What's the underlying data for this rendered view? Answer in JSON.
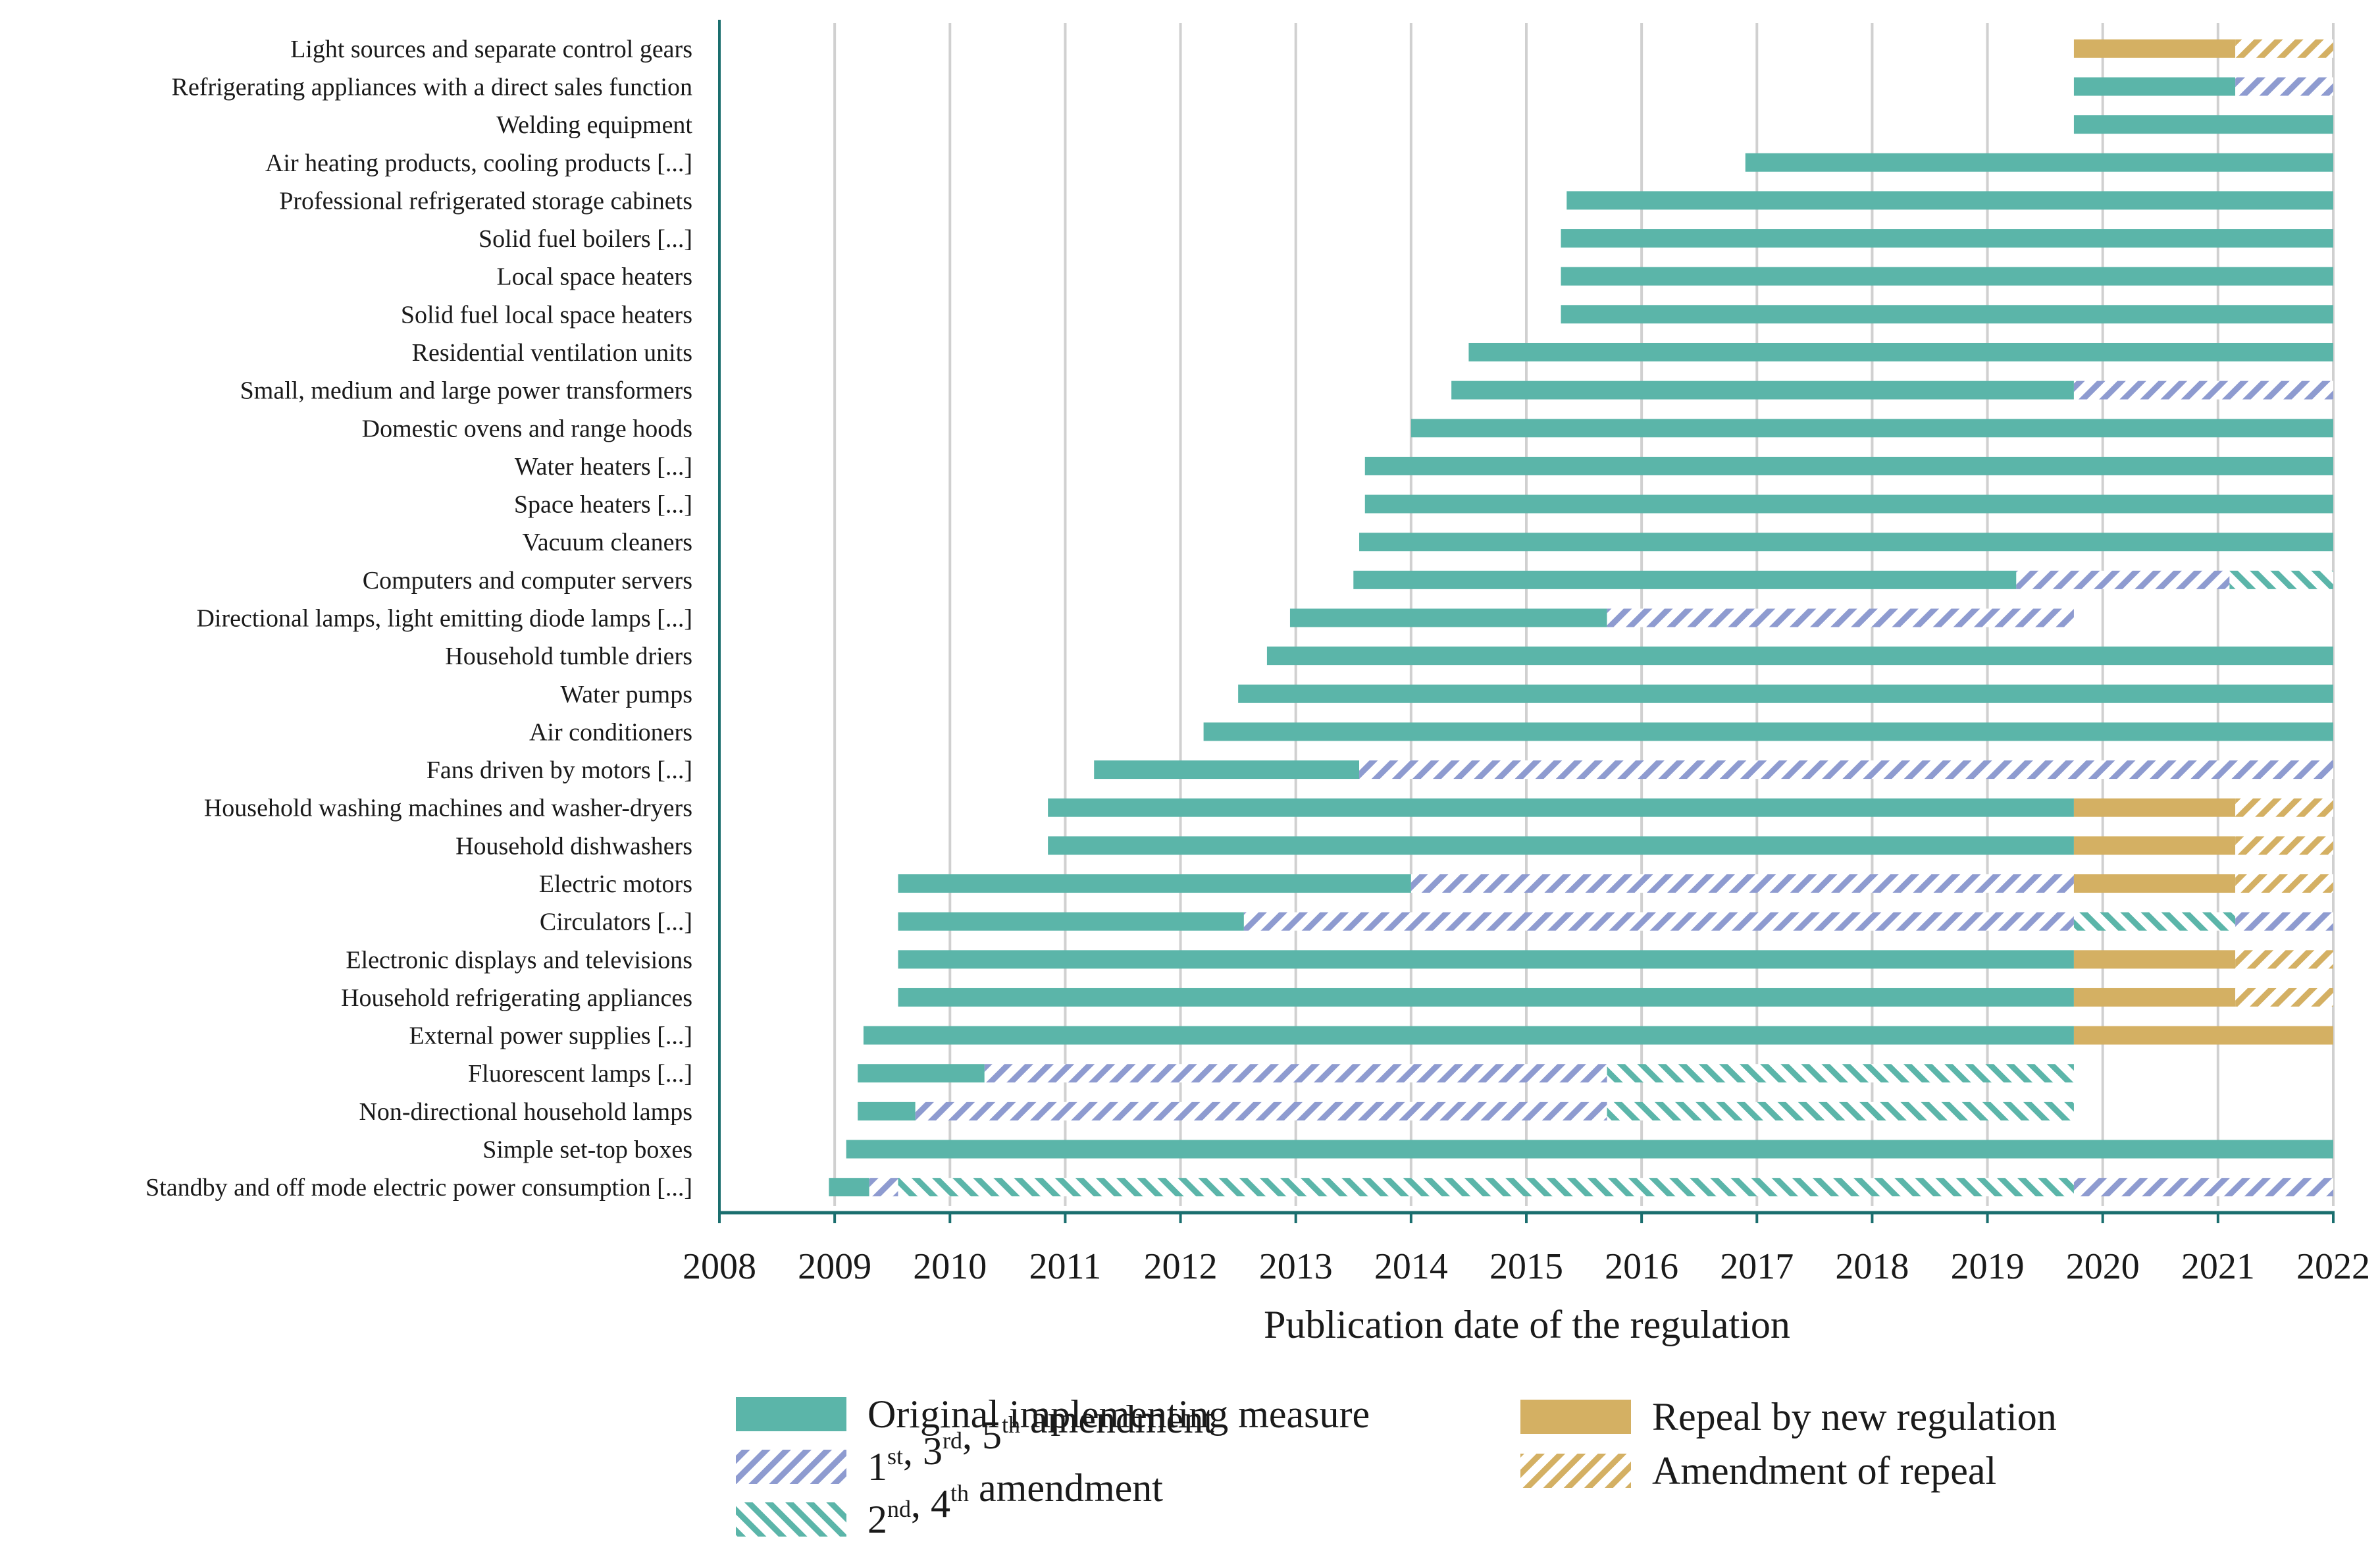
{
  "chart_data": {
    "type": "gantt-bar",
    "title": "",
    "xlabel": "Publication date of the regulation",
    "ylabel": "",
    "xlim": [
      2008,
      2022
    ],
    "xticks": [
      "2008",
      "2009",
      "2010",
      "2011",
      "2012",
      "2013",
      "2014",
      "2015",
      "2016",
      "2017",
      "2018",
      "2019",
      "2020",
      "2021",
      "2022"
    ],
    "grid": "vertical",
    "legend_position": "bottom",
    "colors": {
      "original": "#5bb5a9",
      "odd_amendment": "#8e9bd0",
      "even_amendment": "#5bb5a9",
      "repeal": "#d4b063",
      "amend_repeal": "#d4b063",
      "axis": "#1a6e6e",
      "grid": "#d0d0d0"
    },
    "legend": [
      {
        "key": "original",
        "text": "Original implementing measure"
      },
      {
        "key": "odd_amendment",
        "text": "1st, 3rd, 5th amendment",
        "rich": [
          [
            "1",
            "st"
          ],
          [
            ", 3",
            "rd"
          ],
          [
            ", 5",
            "th"
          ],
          [
            " amendment",
            ""
          ]
        ]
      },
      {
        "key": "even_amendment",
        "text": "2nd, 4th amendment",
        "rich": [
          [
            "2",
            "nd"
          ],
          [
            ", 4",
            "th"
          ],
          [
            " amendment",
            ""
          ]
        ]
      },
      {
        "key": "repeal",
        "text": "Repeal by new regulation"
      },
      {
        "key": "amend_repeal",
        "text": "Amendment of repeal"
      }
    ],
    "categories": [
      {
        "label": "Light sources and separate control gears",
        "segments": [
          [
            "repeal",
            2019.75,
            2021.15
          ],
          [
            "amend_repeal",
            2021.15,
            2022.0
          ]
        ]
      },
      {
        "label": "Refrigerating appliances with a direct sales function",
        "segments": [
          [
            "original",
            2019.75,
            2021.15
          ],
          [
            "odd_amendment",
            2021.15,
            2022.0
          ]
        ]
      },
      {
        "label": "Welding equipment",
        "segments": [
          [
            "original",
            2019.75,
            2022.0
          ]
        ]
      },
      {
        "label": "Air heating products, cooling products [...]",
        "segments": [
          [
            "original",
            2016.9,
            2022.0
          ]
        ]
      },
      {
        "label": "Professional refrigerated storage cabinets",
        "segments": [
          [
            "original",
            2015.35,
            2022.0
          ]
        ]
      },
      {
        "label": "Solid fuel boilers [...]",
        "segments": [
          [
            "original",
            2015.3,
            2022.0
          ]
        ]
      },
      {
        "label": "Local space heaters",
        "segments": [
          [
            "original",
            2015.3,
            2022.0
          ]
        ]
      },
      {
        "label": "Solid fuel local space heaters",
        "segments": [
          [
            "original",
            2015.3,
            2022.0
          ]
        ]
      },
      {
        "label": "Residential ventilation units",
        "segments": [
          [
            "original",
            2014.5,
            2022.0
          ]
        ]
      },
      {
        "label": "Small, medium and large power transformers",
        "segments": [
          [
            "original",
            2014.35,
            2019.75
          ],
          [
            "odd_amendment",
            2019.75,
            2022.0
          ]
        ]
      },
      {
        "label": "Domestic ovens and range hoods",
        "segments": [
          [
            "original",
            2014.0,
            2022.0
          ]
        ]
      },
      {
        "label": "Water heaters [...]",
        "segments": [
          [
            "original",
            2013.6,
            2022.0
          ]
        ]
      },
      {
        "label": "Space heaters [...]",
        "segments": [
          [
            "original",
            2013.6,
            2022.0
          ]
        ]
      },
      {
        "label": "Vacuum cleaners",
        "segments": [
          [
            "original",
            2013.55,
            2022.0
          ]
        ]
      },
      {
        "label": "Computers and computer servers",
        "segments": [
          [
            "original",
            2013.5,
            2019.25
          ],
          [
            "odd_amendment",
            2019.25,
            2021.1
          ],
          [
            "even_amendment",
            2021.1,
            2022.0
          ]
        ]
      },
      {
        "label": "Directional lamps, light emitting diode lamps [...]",
        "segments": [
          [
            "original",
            2012.95,
            2015.7
          ],
          [
            "odd_amendment",
            2015.7,
            2019.75
          ]
        ]
      },
      {
        "label": "Household tumble driers",
        "segments": [
          [
            "original",
            2012.75,
            2022.0
          ]
        ]
      },
      {
        "label": "Water pumps",
        "segments": [
          [
            "original",
            2012.5,
            2022.0
          ]
        ]
      },
      {
        "label": "Air conditioners",
        "segments": [
          [
            "original",
            2012.2,
            2022.0
          ]
        ]
      },
      {
        "label": "Fans driven by motors [...]",
        "segments": [
          [
            "original",
            2011.25,
            2013.55
          ],
          [
            "odd_amendment",
            2013.55,
            2022.0
          ]
        ]
      },
      {
        "label": "Household washing machines and washer-dryers",
        "segments": [
          [
            "original",
            2010.85,
            2019.75
          ],
          [
            "repeal",
            2019.75,
            2021.15
          ],
          [
            "amend_repeal",
            2021.15,
            2022.0
          ]
        ]
      },
      {
        "label": "Household dishwashers",
        "segments": [
          [
            "original",
            2010.85,
            2019.75
          ],
          [
            "repeal",
            2019.75,
            2021.15
          ],
          [
            "amend_repeal",
            2021.15,
            2022.0
          ]
        ]
      },
      {
        "label": "Electric motors",
        "segments": [
          [
            "original",
            2009.55,
            2014.0
          ],
          [
            "odd_amendment",
            2014.0,
            2019.75
          ],
          [
            "repeal",
            2019.75,
            2021.15
          ],
          [
            "amend_repeal",
            2021.15,
            2022.0
          ]
        ]
      },
      {
        "label": "Circulators [...]",
        "segments": [
          [
            "original",
            2009.55,
            2012.55
          ],
          [
            "odd_amendment",
            2012.55,
            2019.75
          ],
          [
            "even_amendment",
            2019.75,
            2021.15
          ],
          [
            "odd_amendment",
            2021.15,
            2022.0
          ]
        ]
      },
      {
        "label": "Electronic displays and televisions",
        "segments": [
          [
            "original",
            2009.55,
            2019.75
          ],
          [
            "repeal",
            2019.75,
            2021.15
          ],
          [
            "amend_repeal",
            2021.15,
            2022.0
          ]
        ]
      },
      {
        "label": "Household refrigerating appliances",
        "segments": [
          [
            "original",
            2009.55,
            2019.75
          ],
          [
            "repeal",
            2019.75,
            2021.15
          ],
          [
            "amend_repeal",
            2021.15,
            2022.0
          ]
        ]
      },
      {
        "label": "External power supplies [...]",
        "segments": [
          [
            "original",
            2009.25,
            2019.75
          ],
          [
            "repeal",
            2019.75,
            2022.0
          ]
        ]
      },
      {
        "label": "Fluorescent lamps [...]",
        "segments": [
          [
            "original",
            2009.2,
            2010.3
          ],
          [
            "odd_amendment",
            2010.3,
            2015.7
          ],
          [
            "even_amendment",
            2015.7,
            2019.75
          ]
        ]
      },
      {
        "label": "Non-directional household lamps",
        "segments": [
          [
            "original",
            2009.2,
            2009.7
          ],
          [
            "odd_amendment",
            2009.7,
            2015.7
          ],
          [
            "even_amendment",
            2015.7,
            2019.75
          ]
        ]
      },
      {
        "label": "Simple set-top boxes",
        "segments": [
          [
            "original",
            2009.1,
            2022.0
          ]
        ]
      },
      {
        "label": "Standby and off mode electric power consumption [...]",
        "segments": [
          [
            "original",
            2008.95,
            2009.3
          ],
          [
            "odd_amendment",
            2009.3,
            2009.55
          ],
          [
            "even_amendment",
            2009.55,
            2013.55
          ],
          [
            "even_amendment",
            2013.55,
            2019.75
          ],
          [
            "odd_amendment",
            2019.75,
            2022.0
          ]
        ]
      }
    ]
  }
}
